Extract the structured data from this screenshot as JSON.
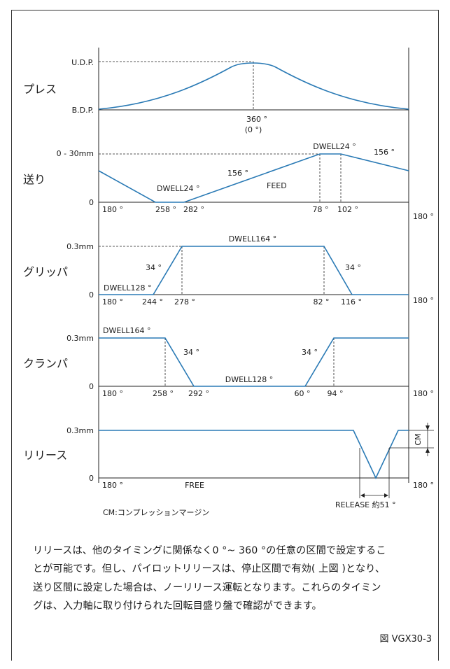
{
  "diagram": {
    "rows": [
      {
        "id": "press",
        "name": "プレス",
        "top_label": "U.D.P.",
        "bottom_label": "B.D.P.",
        "annotations": [
          "360 °",
          "(0 °)"
        ]
      },
      {
        "id": "feed",
        "name": "送り",
        "top_label": "0 - 30mm",
        "bottom_label": "0",
        "annotations": [
          "DWELL24 °",
          "156 °",
          "DWELL24 °",
          "156 °",
          "FEED"
        ],
        "ticks": [
          "180 °",
          "258 °",
          "282 °",
          "78 °",
          "102 °",
          "180 °"
        ]
      },
      {
        "id": "grip",
        "name": "グリッパ",
        "top_label": "0.3mm",
        "bottom_label": "0",
        "annotations": [
          "DWELL164 °",
          "34 °",
          "34 °",
          "DWELL128 °"
        ],
        "ticks": [
          "180 °",
          "244 °",
          "278 °",
          "82 °",
          "116 °",
          "180 °"
        ]
      },
      {
        "id": "clamp",
        "name": "クランパ",
        "top_label": "0.3mm",
        "bottom_label": "0",
        "annotations": [
          "DWELL164 °",
          "34 °",
          "34 °",
          "DWELL128 °"
        ],
        "ticks": [
          "180 °",
          "258 °",
          "292 °",
          "60 °",
          "94 °",
          "180 °"
        ]
      },
      {
        "id": "release",
        "name": "リリース",
        "top_label": "0.3mm",
        "bottom_label": "0",
        "annotations": [
          "FREE",
          "RELEASE 約51 °",
          "CM"
        ],
        "ticks": [
          "180 °",
          "180 °"
        ]
      }
    ],
    "legend": "CM:コンプレッションマージン",
    "line_color": "#2a7ab5"
  },
  "description": [
    "リリースは、他のタイミングに関係なく0 °~ 360 °の任意の区間で設定するこ",
    "とが可能です。但し、パイロットリリースは、停止区間で有効( 上図 )となり、",
    "送り区間に設定した場合は、ノーリリース運転となります。これらのタイミン",
    "グは、入力軸に取り付けられた回転目盛り盤で確認ができます。"
  ],
  "figure_caption": "図 VGX30-3"
}
